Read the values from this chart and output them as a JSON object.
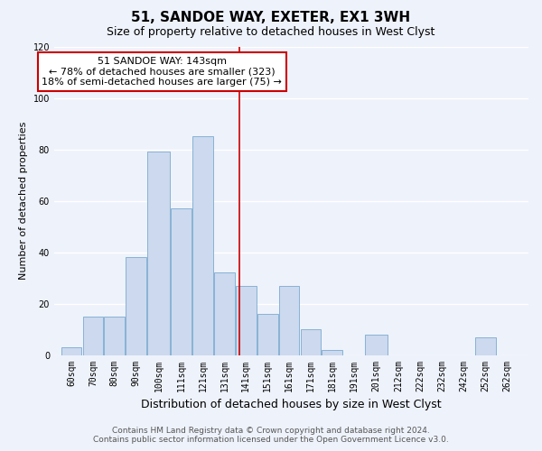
{
  "title": "51, SANDOE WAY, EXETER, EX1 3WH",
  "subtitle": "Size of property relative to detached houses in West Clyst",
  "xlabel": "Distribution of detached houses by size in West Clyst",
  "ylabel": "Number of detached properties",
  "bar_labels": [
    "60sqm",
    "70sqm",
    "80sqm",
    "90sqm",
    "100sqm",
    "111sqm",
    "121sqm",
    "131sqm",
    "141sqm",
    "151sqm",
    "161sqm",
    "171sqm",
    "181sqm",
    "191sqm",
    "201sqm",
    "212sqm",
    "222sqm",
    "232sqm",
    "242sqm",
    "252sqm",
    "262sqm"
  ],
  "bar_values": [
    3,
    15,
    15,
    38,
    79,
    57,
    85,
    32,
    27,
    16,
    27,
    10,
    2,
    0,
    8,
    0,
    0,
    0,
    0,
    7,
    0
  ],
  "bar_edges": [
    60,
    70,
    80,
    90,
    100,
    111,
    121,
    131,
    141,
    151,
    161,
    171,
    181,
    191,
    201,
    212,
    222,
    232,
    242,
    252,
    262,
    272
  ],
  "bar_color": "#ccd9ee",
  "bar_edgecolor": "#7aaad0",
  "vline_x": 143,
  "vline_color": "#cc0000",
  "ylim": [
    0,
    120
  ],
  "yticks": [
    0,
    20,
    40,
    60,
    80,
    100,
    120
  ],
  "annotation_title": "51 SANDOE WAY: 143sqm",
  "annotation_line1": "← 78% of detached houses are smaller (323)",
  "annotation_line2": "18% of semi-detached houses are larger (75) →",
  "annotation_box_color": "#cc0000",
  "annotation_bg": "#ffffff",
  "footer1": "Contains HM Land Registry data © Crown copyright and database right 2024.",
  "footer2": "Contains public sector information licensed under the Open Government Licence v3.0.",
  "background_color": "#eef2fb",
  "grid_color": "#ffffff",
  "title_fontsize": 11,
  "subtitle_fontsize": 9,
  "xlabel_fontsize": 9,
  "ylabel_fontsize": 8,
  "tick_fontsize": 7,
  "footer_fontsize": 6.5,
  "ann_fontsize": 8
}
